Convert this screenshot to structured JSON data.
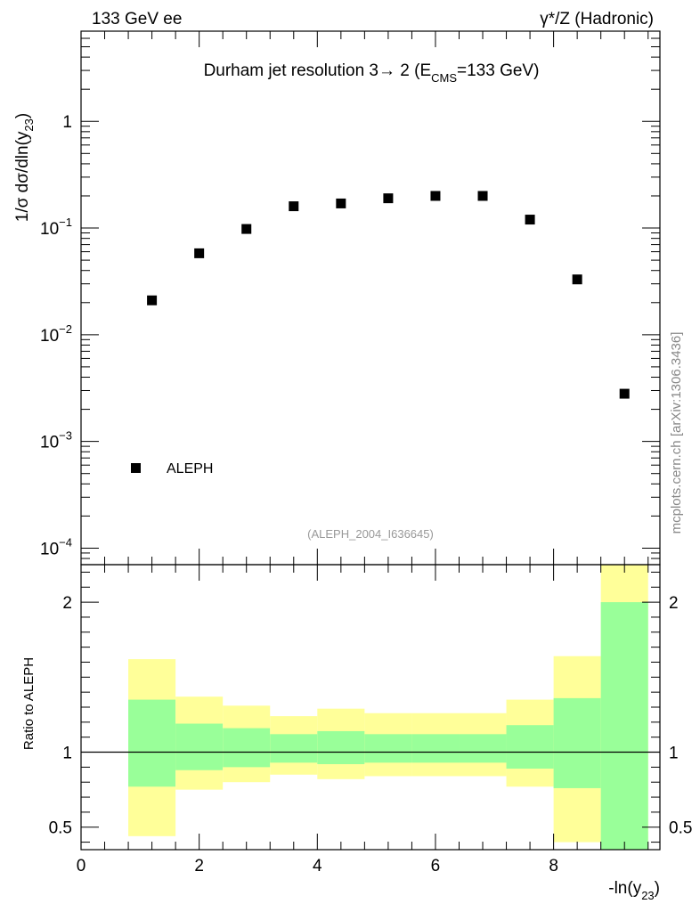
{
  "chart_data": [
    {
      "type": "scatter",
      "header_left": "133 GeV ee",
      "header_right": "γ*/Z (Hadronic)",
      "title_main": "Durham jet resolution 3→  2 (E",
      "title_sub": "CMS",
      "title_end": "=133 GeV)",
      "ylabel_main": "1/σ  dσ/dln(y",
      "ylabel_sub": "23",
      "ylabel_end": ")",
      "yscale": "log",
      "ylim": [
        7e-05,
        7
      ],
      "xlim": [
        0,
        9.8
      ],
      "yticks": [
        {
          "value": 1,
          "base": "1",
          "exp": ""
        },
        {
          "value": 0.1,
          "base": "10",
          "exp": "−1"
        },
        {
          "value": 0.01,
          "base": "10",
          "exp": "−2"
        },
        {
          "value": 0.001,
          "base": "10",
          "exp": "−3"
        },
        {
          "value": 0.0001,
          "base": "10",
          "exp": "−4"
        }
      ],
      "series": [
        {
          "name": "ALEPH",
          "marker": "square",
          "x": [
            1.2,
            2.0,
            2.8,
            3.6,
            4.4,
            5.2,
            6.0,
            6.8,
            7.6,
            8.4,
            9.2
          ],
          "values": [
            0.021,
            0.058,
            0.098,
            0.16,
            0.17,
            0.19,
            0.2,
            0.2,
            0.12,
            0.033,
            0.0028
          ]
        }
      ],
      "legend": [
        {
          "label": "ALEPH",
          "position": "bottom-left"
        }
      ],
      "reference": "(ALEPH_2004_I636645)"
    },
    {
      "type": "area",
      "ylabel": "Ratio to ALEPH",
      "ylim": [
        0.35,
        2.25
      ],
      "xlim": [
        0,
        9.8
      ],
      "reference_line": 1,
      "yticks": [
        {
          "value": 2,
          "label": "2"
        },
        {
          "value": 1,
          "label": "1"
        },
        {
          "value": 0.5,
          "label": "0.5"
        }
      ],
      "xticks": [
        {
          "value": 0,
          "label": "0"
        },
        {
          "value": 2,
          "label": "2"
        },
        {
          "value": 4,
          "label": "4"
        },
        {
          "value": 6,
          "label": "6"
        },
        {
          "value": 8,
          "label": "8"
        }
      ],
      "xlabel_main": "-ln(y",
      "xlabel_sub": "23",
      "xlabel_end": ")",
      "bins": [
        {
          "lo": 0.8,
          "hi": 1.6,
          "outer": [
            0.44,
            1.62
          ],
          "inner": [
            0.77,
            1.35
          ]
        },
        {
          "lo": 1.6,
          "hi": 2.4,
          "outer": [
            0.75,
            1.37
          ],
          "inner": [
            0.88,
            1.19
          ]
        },
        {
          "lo": 2.4,
          "hi": 3.2,
          "outer": [
            0.8,
            1.31
          ],
          "inner": [
            0.9,
            1.16
          ]
        },
        {
          "lo": 3.2,
          "hi": 4.0,
          "outer": [
            0.85,
            1.24
          ],
          "inner": [
            0.93,
            1.12
          ]
        },
        {
          "lo": 4.0,
          "hi": 4.8,
          "outer": [
            0.82,
            1.29
          ],
          "inner": [
            0.92,
            1.14
          ]
        },
        {
          "lo": 4.8,
          "hi": 5.6,
          "outer": [
            0.84,
            1.26
          ],
          "inner": [
            0.93,
            1.12
          ]
        },
        {
          "lo": 5.6,
          "hi": 6.4,
          "outer": [
            0.84,
            1.26
          ],
          "inner": [
            0.93,
            1.12
          ]
        },
        {
          "lo": 6.4,
          "hi": 7.2,
          "outer": [
            0.84,
            1.26
          ],
          "inner": [
            0.93,
            1.12
          ]
        },
        {
          "lo": 7.2,
          "hi": 8.0,
          "outer": [
            0.77,
            1.35
          ],
          "inner": [
            0.89,
            1.18
          ]
        },
        {
          "lo": 8.0,
          "hi": 8.8,
          "outer": [
            0.4,
            1.64
          ],
          "inner": [
            0.76,
            1.36
          ]
        },
        {
          "lo": 8.8,
          "hi": 9.6,
          "outer": [
            0.35,
            2.25
          ],
          "inner": [
            0.35,
            2.0
          ]
        }
      ],
      "colors": {
        "outer": "#ffff99",
        "inner": "#99ff99",
        "line": "#000000"
      }
    }
  ],
  "watermark": "mcplots.cern.ch [arXiv:1306.3436]"
}
